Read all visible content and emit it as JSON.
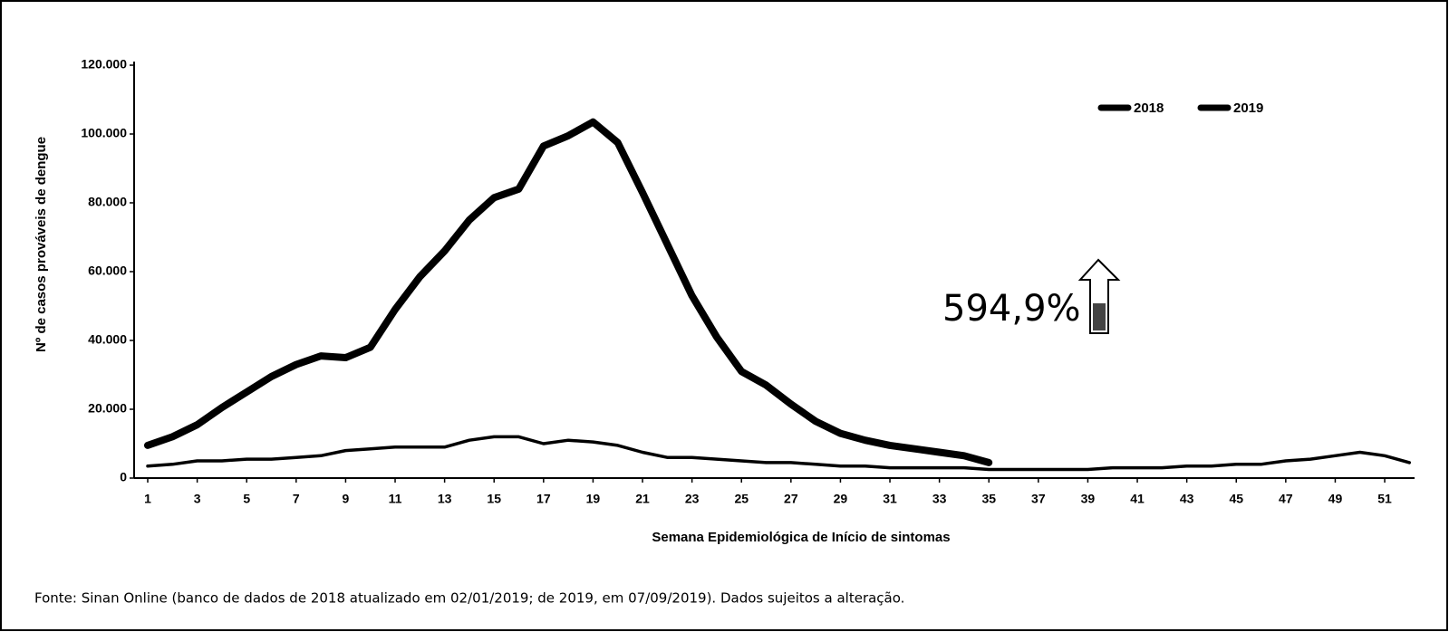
{
  "chart_data": {
    "type": "line",
    "x_label": "Semana Epidemiológica de Início de sintomas",
    "y_label": "Nº de casos prováveis de dengue",
    "annotation": "594,9%",
    "source": "Fonte: Sinan Online (banco de dados de 2018 atualizado em 02/01/2019; de 2019, em 07/09/2019). Dados sujeitos a alteração.",
    "x": [
      1,
      2,
      3,
      4,
      5,
      6,
      7,
      8,
      9,
      10,
      11,
      12,
      13,
      14,
      15,
      16,
      17,
      18,
      19,
      20,
      21,
      22,
      23,
      24,
      25,
      26,
      27,
      28,
      29,
      30,
      31,
      32,
      33,
      34,
      35,
      36,
      37,
      38,
      39,
      40,
      41,
      42,
      43,
      44,
      45,
      46,
      47,
      48,
      49,
      50,
      51,
      52
    ],
    "xlim": [
      0.45,
      52.5
    ],
    "xticks": [
      1,
      3,
      5,
      7,
      9,
      11,
      13,
      15,
      17,
      19,
      21,
      23,
      25,
      27,
      29,
      31,
      33,
      35,
      37,
      39,
      41,
      43,
      45,
      47,
      49,
      51
    ],
    "ylim": [
      0,
      120000
    ],
    "yticks": [
      {
        "value": 0,
        "label": "0"
      },
      {
        "value": 20000,
        "label": "20.000"
      },
      {
        "value": 40000,
        "label": "40.000"
      },
      {
        "value": 60000,
        "label": "60.000"
      },
      {
        "value": 80000,
        "label": "80.000"
      },
      {
        "value": 100000,
        "label": "100.000"
      },
      {
        "value": 120000,
        "label": "120.000"
      }
    ],
    "legend": "top-right",
    "series": [
      {
        "name": "2018",
        "color": "#000000",
        "values": [
          3500,
          4000,
          5000,
          5000,
          5500,
          5500,
          6000,
          6500,
          8000,
          8500,
          9000,
          9000,
          9000,
          11000,
          12000,
          12000,
          10000,
          11000,
          10500,
          9500,
          7500,
          6000,
          6000,
          5500,
          5000,
          4500,
          4500,
          4000,
          3500,
          3500,
          3000,
          3000,
          3000,
          3000,
          2500,
          2500,
          2500,
          2500,
          2500,
          3000,
          3000,
          3000,
          3500,
          3500,
          4000,
          4000,
          5000,
          5500,
          6500,
          7500,
          6500,
          4500
        ]
      },
      {
        "name": "2019",
        "color": "#000000",
        "values": [
          9500,
          12000,
          15500,
          20500,
          25000,
          29500,
          33000,
          35500,
          35000,
          38000,
          49000,
          58500,
          66000,
          75000,
          81500,
          84000,
          96500,
          99500,
          103500,
          97500,
          83000,
          68000,
          53000,
          41000,
          31000,
          27000,
          21500,
          16500,
          13000,
          11000,
          9500,
          8500,
          7500,
          6500,
          4500,
          null,
          null,
          null,
          null,
          null,
          null,
          null,
          null,
          null,
          null,
          null,
          null,
          null,
          null,
          null,
          null,
          null
        ]
      }
    ]
  }
}
